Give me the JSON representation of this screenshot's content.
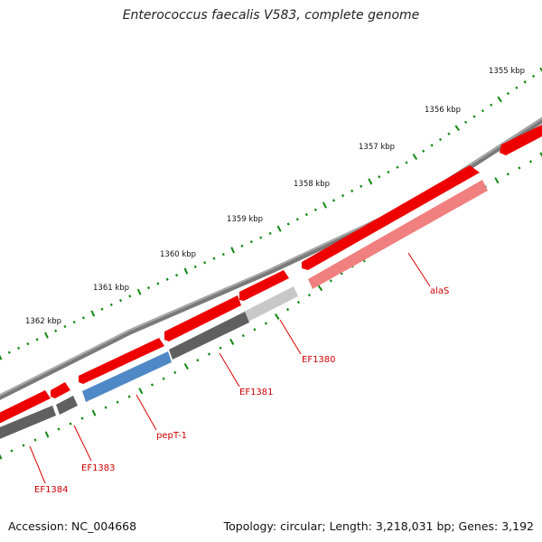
{
  "title": "Enterococcus faecalis V583, complete genome",
  "footer": {
    "accession": "Accession: NC_004668",
    "stats": "Topology: circular; Length: 3,218,031 bp; Genes: 3,192"
  },
  "ruler": {
    "labels": [
      "1355 kbp",
      "1356 kbp",
      "1357 kbp",
      "1358 kbp",
      "1359 kbp",
      "1360 kbp",
      "1361 kbp",
      "1362 kbp"
    ]
  },
  "genes": [
    {
      "name": "alaS"
    },
    {
      "name": "EF1380"
    },
    {
      "name": "EF1381"
    },
    {
      "name": "pepT-1"
    },
    {
      "name": "EF1383"
    },
    {
      "name": "EF1384"
    }
  ],
  "colors": {
    "backbone": "#808080",
    "cds_red": "#ee0000",
    "gene_dark_gray": "#606060",
    "gene_light_gray": "#c8c8c8",
    "gene_blue": "#4f88c6",
    "gene_pink": "#f08080",
    "tick_green": "#118811",
    "label_red": "#cc0000"
  }
}
